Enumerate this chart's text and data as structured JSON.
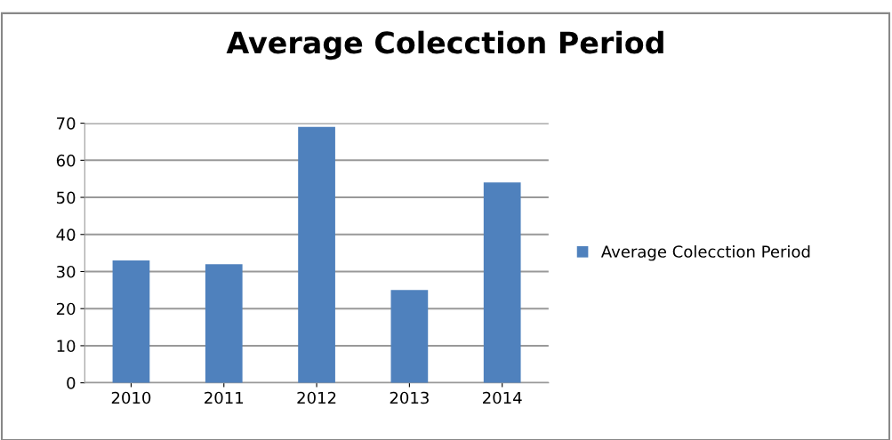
{
  "chart_data": {
    "type": "bar",
    "title": "Average Colecction Period",
    "categories": [
      "2010",
      "2011",
      "2012",
      "2013",
      "2014"
    ],
    "series": [
      {
        "name": "Average Colecction Period",
        "color": "#4f81bd",
        "values": [
          33,
          32,
          69,
          25,
          54
        ]
      }
    ],
    "ylim": [
      0,
      70
    ],
    "yticks": [
      0,
      10,
      20,
      30,
      40,
      50,
      60,
      70
    ],
    "grid": "y",
    "legend": "right"
  }
}
